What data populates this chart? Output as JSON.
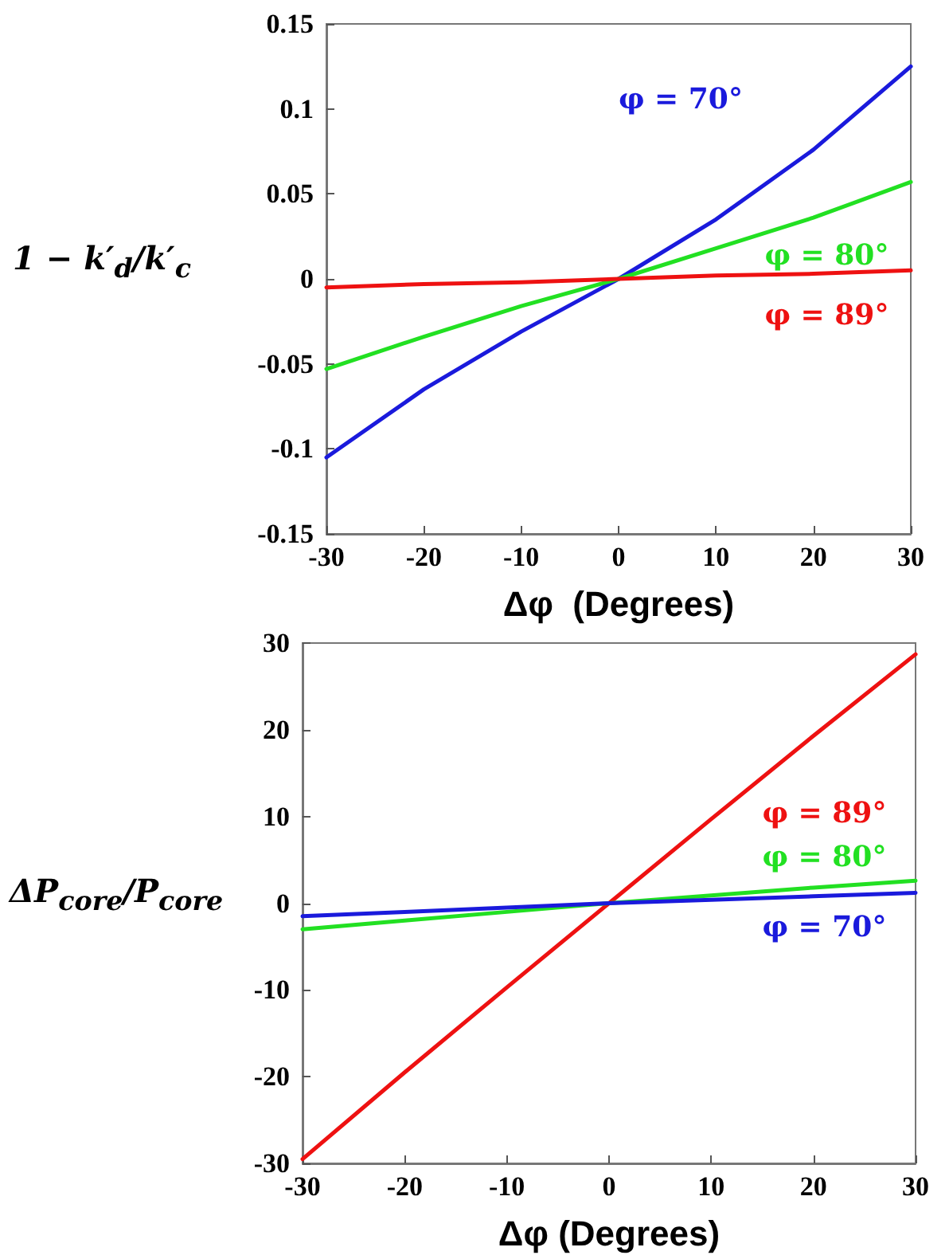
{
  "chart_data": [
    {
      "type": "line",
      "xlabel": "Δφ  (Degrees)",
      "ylabel": "1 − k′$_{d}$/k′$_{c}$",
      "x": [
        -30,
        -20,
        -10,
        0,
        10,
        20,
        30
      ],
      "xlim": [
        -30,
        30
      ],
      "xticks": [
        -30,
        -20,
        -10,
        0,
        10,
        20,
        30
      ],
      "ylim": [
        -0.15,
        0.15
      ],
      "yticks": [
        -0.15,
        -0.1,
        -0.05,
        0,
        0.05,
        0.1,
        0.15
      ],
      "marker": "none",
      "line_style": "solid",
      "series": [
        {
          "name": "φ = 70°",
          "color": "#1a1adc",
          "values": [
            -0.105,
            -0.065,
            -0.031,
            0,
            0.035,
            0.076,
            0.125
          ]
        },
        {
          "name": "φ = 80°",
          "color": "#22e022",
          "values": [
            -0.053,
            -0.034,
            -0.016,
            0,
            0.018,
            0.036,
            0.057
          ]
        },
        {
          "name": "φ = 89°",
          "color": "#ee1111",
          "values": [
            -0.005,
            -0.003,
            -0.002,
            0,
            0.002,
            0.003,
            0.005
          ]
        }
      ]
    },
    {
      "type": "line",
      "xlabel": "Δφ (Degrees)",
      "ylabel": "ΔP$_{core}$/P$_{core}$",
      "x": [
        -30,
        -20,
        -10,
        0,
        10,
        20,
        30
      ],
      "xlim": [
        -30,
        30
      ],
      "xticks": [
        -30,
        -20,
        -10,
        0,
        10,
        20,
        30
      ],
      "ylim": [
        -30,
        30
      ],
      "yticks": [
        -30,
        -20,
        -10,
        0,
        10,
        20,
        30
      ],
      "marker": "none",
      "line_style": "solid",
      "series": [
        {
          "name": "φ = 89°",
          "color": "#ee1111",
          "values": [
            -29.5,
            -19.5,
            -9.7,
            0,
            9.7,
            19.3,
            28.7
          ]
        },
        {
          "name": "φ = 80°",
          "color": "#22e022",
          "values": [
            -3,
            -2,
            -1,
            0,
            0.9,
            1.8,
            2.6
          ]
        },
        {
          "name": "φ = 70°",
          "color": "#1a1adc",
          "values": [
            -1.5,
            -1,
            -0.5,
            0,
            0.4,
            0.8,
            1.2
          ]
        }
      ]
    }
  ]
}
